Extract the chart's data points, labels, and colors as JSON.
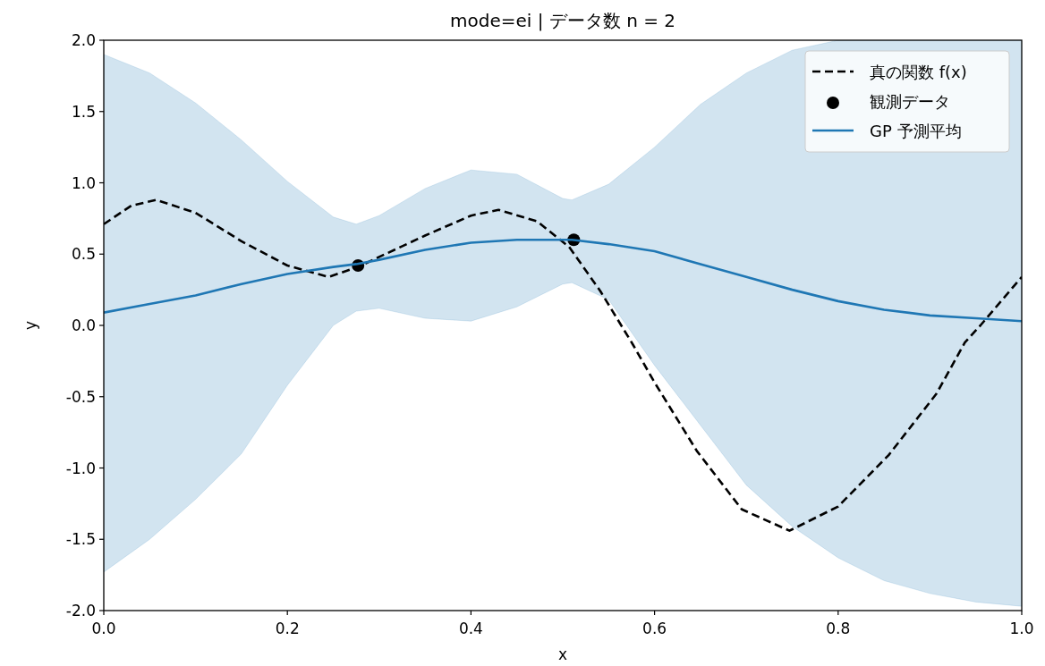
{
  "chart_data": {
    "type": "line",
    "title": "mode=ei | データ数 n = 2",
    "xlabel": "x",
    "ylabel": "y",
    "xlim": [
      0,
      1
    ],
    "ylim": [
      -2,
      2
    ],
    "xticks": [
      {
        "value": 0,
        "label": "0.0"
      },
      {
        "value": 0.2,
        "label": "0.2"
      },
      {
        "value": 0.4,
        "label": "0.4"
      },
      {
        "value": 0.6,
        "label": "0.6"
      },
      {
        "value": 0.8,
        "label": "0.8"
      },
      {
        "value": 1,
        "label": "1.0"
      }
    ],
    "yticks": [
      {
        "value": -2,
        "label": "-2.0"
      },
      {
        "value": -1.5,
        "label": "-1.5"
      },
      {
        "value": -1,
        "label": "-1.0"
      },
      {
        "value": -0.5,
        "label": "-0.5"
      },
      {
        "value": 0,
        "label": "0.0"
      },
      {
        "value": 0.5,
        "label": "0.5"
      },
      {
        "value": 1,
        "label": "1.0"
      },
      {
        "value": 1.5,
        "label": "1.5"
      },
      {
        "value": 2,
        "label": "2.0"
      }
    ],
    "grid": false,
    "legend": "top right",
    "series": [
      {
        "name": "真の関数 f(x)",
        "type": "line",
        "color": "#000000",
        "line_style": "dashed",
        "x": [
          0,
          0.03,
          0.057,
          0.1,
          0.15,
          0.2,
          0.245,
          0.277,
          0.3,
          0.35,
          0.4,
          0.43,
          0.472,
          0.507,
          0.541,
          0.576,
          0.6,
          0.646,
          0.695,
          0.747,
          0.8,
          0.855,
          0.907,
          0.938,
          0.955,
          1
        ],
        "values": [
          0.71,
          0.84,
          0.88,
          0.79,
          0.59,
          0.42,
          0.34,
          0.41,
          0.48,
          0.63,
          0.77,
          0.81,
          0.73,
          0.55,
          0.24,
          -0.13,
          -0.4,
          -0.88,
          -1.29,
          -1.44,
          -1.27,
          -0.91,
          -0.48,
          -0.12,
          0,
          0.34
        ]
      },
      {
        "name": "観測データ",
        "type": "scatter",
        "color": "#000000",
        "marker": "circle",
        "x": [
          0.277,
          0.512
        ],
        "values": [
          0.42,
          0.6
        ]
      },
      {
        "name": "GP 予測平均",
        "type": "line",
        "color": "#1f77b4",
        "line_style": "solid",
        "x": [
          0,
          0.05,
          0.1,
          0.15,
          0.2,
          0.25,
          0.275,
          0.3,
          0.35,
          0.4,
          0.45,
          0.5,
          0.51,
          0.55,
          0.6,
          0.65,
          0.7,
          0.75,
          0.8,
          0.85,
          0.9,
          0.95,
          1
        ],
        "values": [
          0.09,
          0.15,
          0.21,
          0.29,
          0.36,
          0.41,
          0.43,
          0.46,
          0.53,
          0.58,
          0.6,
          0.6,
          0.6,
          0.57,
          0.52,
          0.43,
          0.34,
          0.25,
          0.17,
          0.11,
          0.07,
          0.05,
          0.03
        ],
        "upper": [
          1.9,
          1.77,
          1.56,
          1.3,
          1.01,
          0.76,
          0.71,
          0.77,
          0.96,
          1.09,
          1.06,
          0.89,
          0.88,
          0.99,
          1.25,
          1.55,
          1.77,
          1.93,
          2,
          2,
          2,
          2,
          2
        ],
        "lower": [
          -1.73,
          -1.5,
          -1.22,
          -0.9,
          -0.42,
          0,
          0.1,
          0.12,
          0.05,
          0.03,
          0.13,
          0.29,
          0.3,
          0.18,
          -0.28,
          -0.7,
          -1.12,
          -1.41,
          -1.63,
          -1.79,
          -1.88,
          -1.94,
          -1.97
        ]
      }
    ]
  }
}
